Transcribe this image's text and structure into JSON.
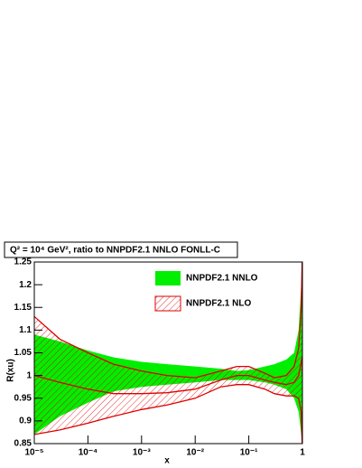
{
  "chart_data": {
    "type": "band",
    "title": "Q² = 10⁴ GeV², ratio to NNPDF2.1 NNLO FONLL-C",
    "x_label": "x",
    "y_label": "R(xu)",
    "x": [
      1e-05,
      3e-05,
      0.0001,
      0.0003,
      0.001,
      0.003,
      0.01,
      0.03,
      0.06,
      0.1,
      0.2,
      0.3,
      0.5,
      0.7,
      0.85,
      0.95,
      0.99,
      1
    ],
    "series": [
      {
        "name": "NNPDF2.1 NNLO",
        "color": "#00ee00",
        "style": "solid",
        "upper": [
          1.09,
          1.075,
          1.055,
          1.04,
          1.03,
          1.025,
          1.02,
          1.015,
          1.01,
          1.012,
          1.02,
          1.025,
          1.035,
          1.05,
          1.1,
          1.2,
          1.25,
          1.25
        ],
        "lower": [
          0.87,
          0.91,
          0.94,
          0.965,
          0.975,
          0.98,
          0.985,
          0.99,
          0.99,
          0.99,
          0.985,
          0.98,
          0.97,
          0.95,
          0.92,
          0.87,
          0.85,
          0.85
        ]
      },
      {
        "name": "NNPDF2.1 NLO",
        "color": "#dd0000",
        "style": "hatched",
        "upper": [
          1.13,
          1.08,
          1.05,
          1.025,
          1.01,
          1.0,
          0.995,
          1.01,
          1.02,
          1.02,
          1.005,
          0.995,
          1.0,
          1.02,
          1.06,
          1.15,
          1.25,
          1.25
        ],
        "values": [
          1.0,
          0.985,
          0.97,
          0.96,
          0.96,
          0.962,
          0.97,
          0.99,
          1.0,
          1.0,
          0.99,
          0.985,
          0.98,
          0.985,
          1.0,
          1.03,
          1.04,
          1.0
        ],
        "lower": [
          0.87,
          0.88,
          0.895,
          0.91,
          0.925,
          0.935,
          0.95,
          0.975,
          0.98,
          0.98,
          0.97,
          0.96,
          0.955,
          0.955,
          0.95,
          0.92,
          0.85,
          0.85
        ]
      }
    ],
    "xscale": "log",
    "xlim": [
      1e-05,
      1
    ],
    "xticks": [
      {
        "value": 1e-05,
        "label": "10⁻⁵"
      },
      {
        "value": 0.0001,
        "label": "10⁻⁴"
      },
      {
        "value": 0.001,
        "label": "10⁻³"
      },
      {
        "value": 0.01,
        "label": "10⁻²"
      },
      {
        "value": 0.1,
        "label": "10⁻¹"
      },
      1
    ],
    "ylim": [
      0.85,
      1.25
    ],
    "yticks": [
      0.85,
      0.9,
      0.95,
      1,
      1.05,
      1.1,
      1.15,
      1.2,
      1.25
    ],
    "legend": "top-right"
  }
}
